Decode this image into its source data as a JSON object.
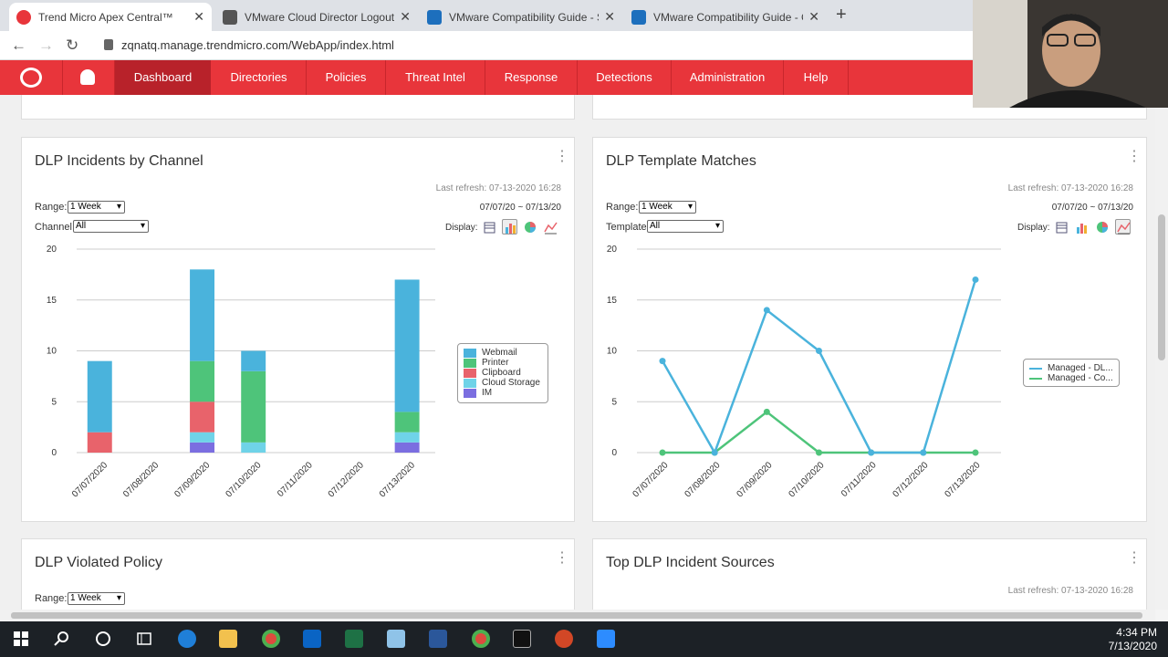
{
  "browser": {
    "tabs": [
      {
        "title": "Trend Micro Apex Central™",
        "favicon_color": "#e8353b",
        "active": true
      },
      {
        "title": "VMware Cloud Director Logout P",
        "favicon_color": "#555555",
        "active": false
      },
      {
        "title": "VMware Compatibility Guide - Sy",
        "favicon_color": "#1d6fbd",
        "active": false
      },
      {
        "title": "VMware Compatibility Guide - G",
        "favicon_color": "#1d6fbd",
        "active": false
      }
    ],
    "new_tab": "+",
    "close_glyph": "✕",
    "url": "zqnatq.manage.trendmicro.com/WebApp/index.html"
  },
  "nav": {
    "items": [
      "Dashboard",
      "Directories",
      "Policies",
      "Threat Intel",
      "Response",
      "Detections",
      "Administration",
      "Help"
    ],
    "active": "Dashboard",
    "color": "#e8353b"
  },
  "panels": {
    "incidents_by_channel": {
      "title": "DLP Incidents by Channel",
      "last_refresh": "Last refresh: 07-13-2020 16:28",
      "range_label": "Range:",
      "range_value": "1 Week",
      "filter_label": "Channel:",
      "filter_value": "All",
      "date_range": "07/07/20 ~ 07/13/20",
      "display_label": "Display:"
    },
    "template_matches": {
      "title": "DLP Template Matches",
      "last_refresh": "Last refresh: 07-13-2020 16:28",
      "range_label": "Range:",
      "range_value": "1 Week",
      "filter_label": "Template:",
      "filter_value": "All",
      "date_range": "07/07/20 ~ 07/13/20",
      "display_label": "Display:"
    },
    "violated_policy": {
      "title": "DLP Violated Policy",
      "range_label": "Range:",
      "range_value": "1 Week"
    },
    "incident_sources": {
      "title": "Top DLP Incident Sources",
      "last_refresh": "Last refresh: 07-13-2020 16:28"
    }
  },
  "chart_data": [
    {
      "type": "bar",
      "stacked": true,
      "categories": [
        "07/07/2020",
        "07/08/2020",
        "07/09/2020",
        "07/10/2020",
        "07/11/2020",
        "07/12/2020",
        "07/13/2020"
      ],
      "series": [
        {
          "name": "IM",
          "color": "#7b6ee0",
          "values": [
            0,
            0,
            1,
            0,
            0,
            0,
            1
          ]
        },
        {
          "name": "Cloud Storage",
          "color": "#6fd3e8",
          "values": [
            0,
            0,
            1,
            1,
            0,
            0,
            1
          ]
        },
        {
          "name": "Clipboard",
          "color": "#e8636b",
          "values": [
            2,
            0,
            3,
            0,
            0,
            0,
            0
          ]
        },
        {
          "name": "Printer",
          "color": "#4ec47a",
          "values": [
            0,
            0,
            4,
            7,
            0,
            0,
            2
          ]
        },
        {
          "name": "Webmail",
          "color": "#4ab3dc",
          "values": [
            7,
            0,
            9,
            2,
            0,
            0,
            13
          ]
        }
      ],
      "legend_order": [
        "Webmail",
        "Printer",
        "Clipboard",
        "Cloud Storage",
        "IM"
      ],
      "y_ticks": [
        "0",
        "5",
        "10",
        "15",
        "20"
      ],
      "ylim": [
        0,
        20
      ],
      "grid": true,
      "legend_position": "right"
    },
    {
      "type": "line",
      "categories": [
        "07/07/2020",
        "07/08/2020",
        "07/09/2020",
        "07/10/2020",
        "07/11/2020",
        "07/12/2020",
        "07/13/2020"
      ],
      "series": [
        {
          "name": "Managed - DL...",
          "color": "#4ab3dc",
          "values": [
            9,
            0,
            14,
            10,
            0,
            0,
            17
          ]
        },
        {
          "name": "Managed - Co...",
          "color": "#4ec47a",
          "values": [
            0,
            0,
            4,
            0,
            0,
            0,
            0
          ]
        }
      ],
      "y_ticks": [
        "0",
        "5",
        "10",
        "15",
        "20"
      ],
      "ylim": [
        0,
        20
      ],
      "grid": true,
      "legend_position": "right"
    }
  ],
  "taskbar": {
    "time": "4:34 PM",
    "date": "7/13/2020",
    "apps": [
      "windows-start",
      "search",
      "cortana",
      "task-view",
      "edge",
      "file-explorer",
      "chrome",
      "outlook",
      "excel",
      "notepad",
      "word",
      "chrome-2",
      "terminal",
      "powerpoint",
      "zoom"
    ]
  }
}
